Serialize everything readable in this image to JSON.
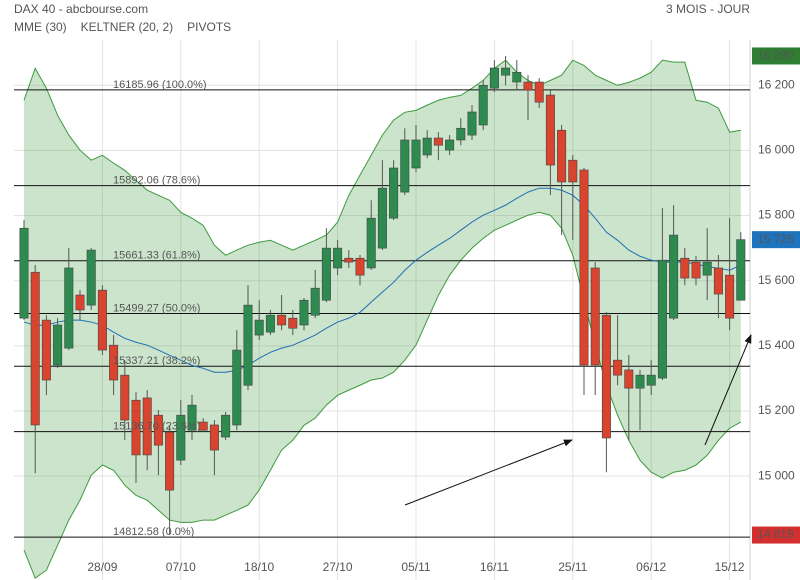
{
  "chart_data": {
    "type": "candlestick",
    "title": "DAX 40 - abcbourse.com",
    "subtitle": "3 MOIS - JOUR",
    "legend": [
      {
        "name": "MME (30)",
        "color": "#1f6fb5"
      },
      {
        "name": "KELTNER (20, 2)",
        "color": "#3d9a3d"
      },
      {
        "name": "PIVOTS",
        "color": "#555555"
      }
    ],
    "categories": [
      null,
      null,
      null,
      null,
      null,
      null,
      null,
      "28/09",
      null,
      null,
      null,
      null,
      null,
      null,
      "07/10",
      null,
      null,
      null,
      null,
      null,
      null,
      "18/10",
      null,
      null,
      null,
      null,
      null,
      null,
      "27/10",
      null,
      null,
      null,
      null,
      null,
      null,
      "05/11",
      null,
      null,
      null,
      null,
      null,
      null,
      "16/11",
      null,
      null,
      null,
      null,
      null,
      null,
      "25/11",
      null,
      null,
      null,
      null,
      null,
      null,
      "06/12",
      null,
      null,
      null,
      null,
      null,
      null,
      "15/12",
      null
    ],
    "open": [
      15485,
      15626,
      15479,
      15341,
      15393,
      15556,
      15525,
      15571,
      15402,
      15310,
      15233,
      15240,
      15187,
      15135,
      15049,
      15141,
      15166,
      15157,
      15120,
      15157,
      15279,
      15433,
      15442,
      15494,
      15485,
      15464,
      15494,
      15540,
      15639,
      15669,
      15669,
      15639,
      15700,
      15792,
      15872,
      15946,
      15986,
      16038,
      16001,
      16032,
      16047,
      16078,
      16191,
      16231,
      16210,
      16210,
      16210,
      16170,
      16062,
      15970,
      15940,
      15639,
      15494,
      15356,
      15326,
      15270,
      15279,
      15301,
      15485,
      15669,
      15657,
      15617,
      15639,
      15617,
      15540
    ],
    "high": [
      15786,
      15648,
      15494,
      15485,
      15700,
      15571,
      15700,
      15586,
      15433,
      15356,
      15258,
      15264,
      15203,
      15157,
      15233,
      15249,
      15178,
      15172,
      15197,
      15448,
      15586,
      15540,
      15510,
      15556,
      15510,
      15547,
      15633,
      15761,
      15725,
      15694,
      15679,
      15847,
      15970,
      15970,
      16068,
      16078,
      16062,
      16056,
      16047,
      16099,
      16139,
      16216,
      16277,
      16290,
      16277,
      16231,
      16222,
      16185,
      16078,
      15986,
      15946,
      15657,
      15504,
      15494,
      15372,
      15326,
      15356,
      15823,
      15832,
      15700,
      15676,
      15761,
      15679,
      15792,
      15749
    ],
    "low": [
      15479,
      15009,
      15249,
      15332,
      15387,
      15479,
      15510,
      15372,
      15249,
      15111,
      14979,
      15018,
      15003,
      14819,
      15034,
      15111,
      15135,
      15003,
      15111,
      15141,
      15264,
      15418,
      15433,
      15448,
      15433,
      15448,
      15485,
      15534,
      15617,
      15639,
      15586,
      15633,
      15694,
      15786,
      15863,
      15933,
      15976,
      15970,
      15986,
      16016,
      16032,
      16062,
      16179,
      16200,
      16185,
      16093,
      16130,
      15863,
      15740,
      15725,
      15249,
      15249,
      15012,
      15279,
      15111,
      15141,
      15249,
      15295,
      15479,
      15586,
      15586,
      15540,
      15485,
      15448,
      15540
    ],
    "close": [
      15761,
      15157,
      15295,
      15464,
      15639,
      15510,
      15694,
      15387,
      15295,
      15172,
      15065,
      15065,
      15095,
      14957,
      15187,
      15218,
      15141,
      15080,
      15187,
      15387,
      15525,
      15479,
      15494,
      15464,
      15454,
      15540,
      15577,
      15700,
      15700,
      15657,
      15617,
      15792,
      15884,
      15946,
      16032,
      16032,
      16038,
      16016,
      16032,
      16068,
      16118,
      16200,
      16253,
      16253,
      16240,
      16185,
      16148,
      15955,
      15903,
      15903,
      15341,
      15341,
      15117,
      15310,
      15270,
      15310,
      15310,
      15663,
      15740,
      15608,
      15608,
      15657,
      15559,
      15485,
      15726
    ],
    "up_color": "#2e8b4f",
    "down_color": "#d9442e",
    "mme": [
      15473,
      15463,
      15463,
      15473,
      15479,
      15479,
      15473,
      15463,
      15442,
      15423,
      15411,
      15402,
      15387,
      15371,
      15356,
      15340,
      15331,
      15319,
      15319,
      15325,
      15340,
      15362,
      15380,
      15393,
      15402,
      15417,
      15433,
      15454,
      15473,
      15485,
      15503,
      15534,
      15565,
      15595,
      15632,
      15663,
      15687,
      15709,
      15730,
      15755,
      15780,
      15801,
      15816,
      15832,
      15853,
      15872,
      15884,
      15884,
      15878,
      15862,
      15832,
      15792,
      15749,
      15724,
      15694,
      15675,
      15663,
      15657,
      15657,
      15657,
      15651,
      15644,
      15638,
      15632,
      15648
    ],
    "keltner_upper": [
      16154,
      16252,
      16191,
      16108,
      16047,
      16001,
      15970,
      15985,
      15961,
      15939,
      15908,
      15878,
      15862,
      15847,
      15810,
      15792,
      15770,
      15709,
      15678,
      15694,
      15709,
      15718,
      15724,
      15709,
      15694,
      15709,
      15724,
      15740,
      15780,
      15862,
      15924,
      15985,
      16047,
      16093,
      16117,
      16123,
      16139,
      16154,
      16163,
      16169,
      16191,
      16215,
      16252,
      16277,
      16240,
      16215,
      16200,
      16215,
      16231,
      16277,
      16261,
      16231,
      16215,
      16200,
      16209,
      16222,
      16240,
      16277,
      16271,
      16271,
      16154,
      16148,
      16130,
      16056,
      16062
    ],
    "keltner_lower": [
      14773,
      14687,
      14711,
      14788,
      14865,
      14926,
      15003,
      15034,
      15018,
      14972,
      14941,
      14926,
      14895,
      14865,
      14858,
      14858,
      14865,
      14865,
      14880,
      14895,
      14911,
      14957,
      15018,
      15080,
      15110,
      15156,
      15178,
      15218,
      15248,
      15264,
      15279,
      15295,
      15301,
      15319,
      15356,
      15402,
      15479,
      15555,
      15617,
      15663,
      15700,
      15730,
      15755,
      15770,
      15786,
      15801,
      15810,
      15801,
      15761,
      15678,
      15540,
      15402,
      15279,
      15187,
      15110,
      15049,
      15012,
      14994,
      15012,
      15018,
      15034,
      15064,
      15110,
      15147,
      15166
    ],
    "pivots": [
      {
        "value": 16185.96,
        "label": "16185.96 (100.0%)"
      },
      {
        "value": 15892.06,
        "label": "15892.06 (78.6%)"
      },
      {
        "value": 15661.33,
        "label": "15661.33 (61.8%)"
      },
      {
        "value": 15499.27,
        "label": "15499.27 (50.0%)"
      },
      {
        "value": 15337.21,
        "label": "15337.21 (38.2%)"
      },
      {
        "value": 15136.7,
        "label": "15136.70 (23.6%)"
      },
      {
        "value": 14812.58,
        "label": "14812.58 (0.0%)"
      }
    ],
    "price_tags": [
      {
        "value": 16290,
        "label": "16 290",
        "color": "#2e7d32"
      },
      {
        "value": 15726,
        "label": "15 726",
        "color": "#1e73be"
      },
      {
        "value": 14819,
        "label": "14 819",
        "color": "#d32f2f"
      }
    ],
    "ylim": [
      14681,
      16339
    ],
    "yticks": [
      {
        "value": 15000,
        "label": "15 000"
      },
      {
        "value": 15200,
        "label": "15 200"
      },
      {
        "value": 15400,
        "label": "15 400"
      },
      {
        "value": 15600,
        "label": "15 600"
      },
      {
        "value": 15800,
        "label": "15 800"
      },
      {
        "value": 16000,
        "label": "16 000"
      },
      {
        "value": 16200,
        "label": "16 200"
      }
    ],
    "grid": true
  }
}
